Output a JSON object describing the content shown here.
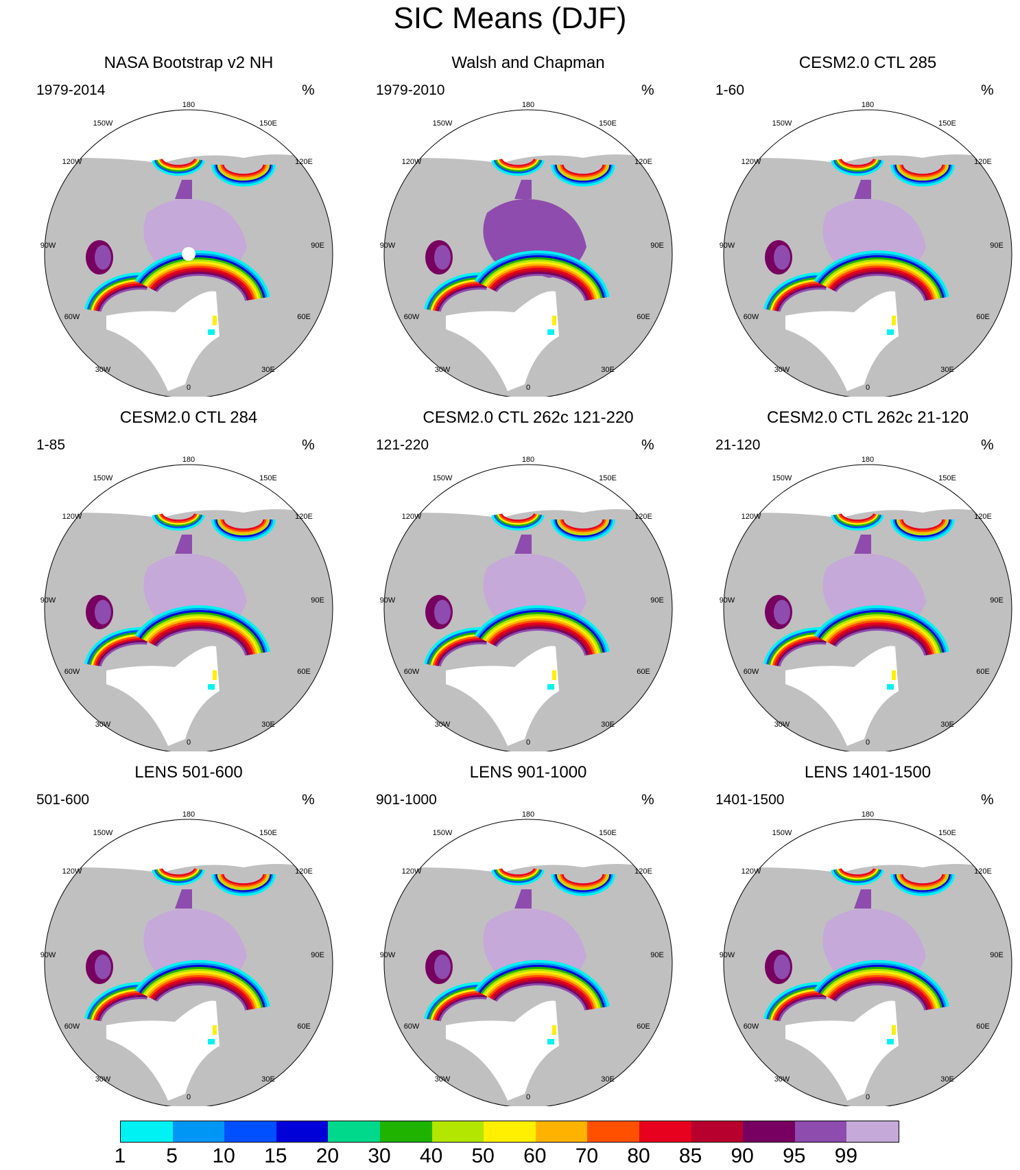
{
  "title": "SIC Means (DJF)",
  "panels": [
    {
      "title": "NASA Bootstrap v2 NH",
      "left_label": "1979-2014",
      "right_label": "%",
      "pole_hole": true,
      "style": "obs"
    },
    {
      "title": "Walsh and Chapman",
      "left_label": "1979-2010",
      "right_label": "%",
      "pole_hole": false,
      "style": "wc"
    },
    {
      "title": "CESM2.0 CTL 285",
      "left_label": "1-60",
      "right_label": "%",
      "pole_hole": false,
      "style": "model"
    },
    {
      "title": "CESM2.0 CTL 284",
      "left_label": "1-85",
      "right_label": "%",
      "pole_hole": false,
      "style": "model"
    },
    {
      "title": "CESM2.0 CTL 262c 121-220",
      "left_label": "121-220",
      "right_label": "%",
      "pole_hole": false,
      "style": "model"
    },
    {
      "title": "CESM2.0 CTL 262c 21-120",
      "left_label": "21-120",
      "right_label": "%",
      "pole_hole": false,
      "style": "model"
    },
    {
      "title": "LENS 501-600",
      "left_label": "501-600",
      "right_label": "%",
      "pole_hole": false,
      "style": "lens"
    },
    {
      "title": "LENS 901-1000",
      "left_label": "901-1000",
      "right_label": "%",
      "pole_hole": false,
      "style": "lens"
    },
    {
      "title": "LENS 1401-1500",
      "left_label": "1401-1500",
      "right_label": "%",
      "pole_hole": false,
      "style": "lens"
    }
  ],
  "longitude_labels": [
    "180",
    "150E",
    "120E",
    "90E",
    "60E",
    "30E",
    "0",
    "30W",
    "60W",
    "90W",
    "120W",
    "150W"
  ],
  "colorbar": {
    "colors": [
      "#00f2f2",
      "#0096f5",
      "#0050ff",
      "#0000d8",
      "#00d98c",
      "#1fb300",
      "#b3e600",
      "#ffef00",
      "#ffb300",
      "#ff5000",
      "#e8001f",
      "#b8002e",
      "#780060",
      "#8e4cae",
      "#c5a9d9"
    ],
    "labels": [
      "1",
      "5",
      "10",
      "15",
      "20",
      "30",
      "40",
      "50",
      "60",
      "70",
      "80",
      "85",
      "90",
      "95",
      "99"
    ]
  },
  "colors": {
    "land": "#c0c0c0",
    "ocean": "#ffffff",
    "pack_ice": "#c5a9d9",
    "border": "#000000"
  }
}
